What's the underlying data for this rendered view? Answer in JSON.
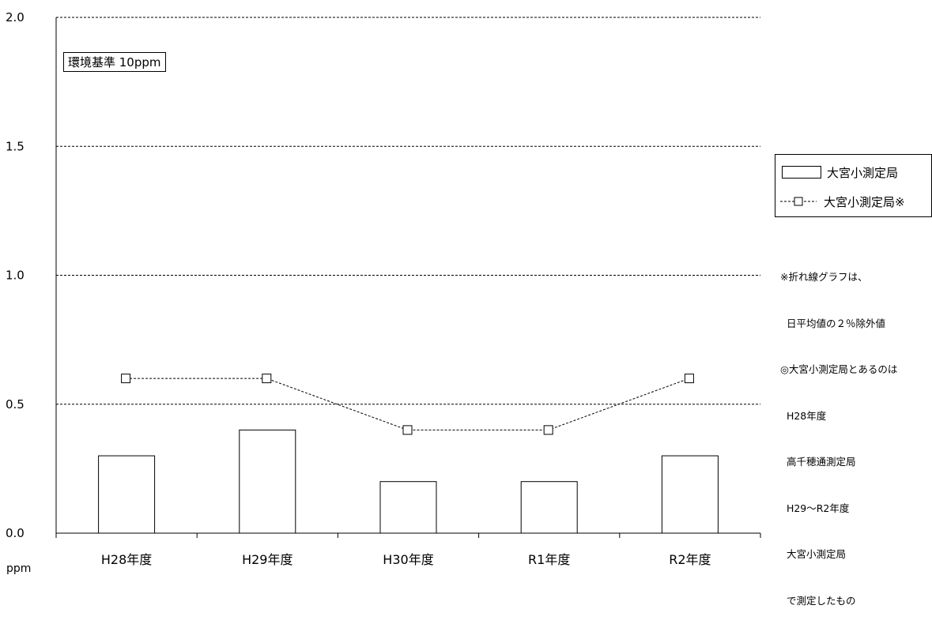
{
  "chart_data": {
    "type": "bar",
    "categories": [
      "H28年度",
      "H29年度",
      "H30年度",
      "R1年度",
      "R2年度"
    ],
    "series": [
      {
        "name": "大宮小測定局",
        "kind": "bar",
        "values": [
          0.3,
          0.4,
          0.2,
          0.2,
          0.3
        ]
      },
      {
        "name": "大宮小測定局※",
        "kind": "line",
        "values": [
          0.6,
          0.6,
          0.4,
          0.4,
          0.6
        ]
      }
    ],
    "ylim": [
      0,
      2.0
    ],
    "yticks": [
      "0.0",
      "0.5",
      "1.0",
      "1.5",
      "2.0"
    ],
    "ylabel": "ppm",
    "grid": "dotted horizontal at each y tick",
    "legend_position": "right",
    "annotation_box": "環境基準 10ppm",
    "note_lines": [
      "※折れ線グラフは、",
      "  日平均値の２％除外値",
      "◎大宮小測定局とあるのは",
      "  H28年度",
      "  高千穂通測定局",
      "  H29～R2年度",
      "  大宮小測定局",
      "  で測定したもの"
    ]
  }
}
